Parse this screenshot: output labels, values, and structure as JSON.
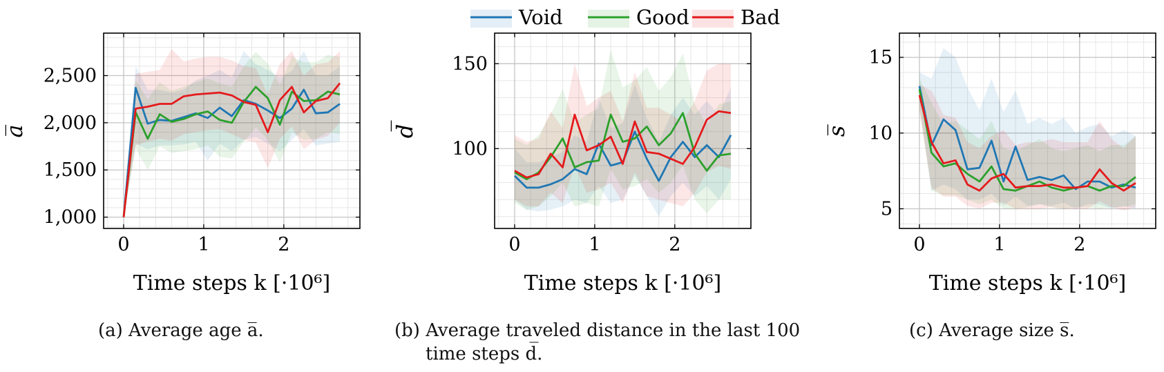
{
  "legend": {
    "entries": [
      {
        "name": "Void",
        "color": "#1f77b4"
      },
      {
        "name": "Good",
        "color": "#2ca02c"
      },
      {
        "name": "Bad",
        "color": "#e41a1c"
      }
    ]
  },
  "captions": {
    "a": "(a) Average age a̅.",
    "b_line1": "(b) Average traveled distance in the last 100",
    "b_line2": "time steps d̅.",
    "c": "(c) Average size s̅."
  },
  "chart_data": [
    {
      "type": "line",
      "ylabel": "a̅",
      "xlabel": "Time steps k [·10⁶]",
      "xlim": [
        -0.25,
        2.95
      ],
      "ylim": [
        880,
        2950
      ],
      "xticks": [
        0,
        1,
        2
      ],
      "xtick_labels": [
        "0",
        "1",
        "2"
      ],
      "yticks": [
        1000,
        1500,
        2000,
        2500
      ],
      "ytick_labels": [
        "1,000",
        "1,500",
        "2,000",
        "2,500"
      ],
      "grid": true,
      "x": [
        0,
        0.15,
        0.3,
        0.45,
        0.6,
        0.75,
        0.9,
        1.05,
        1.2,
        1.35,
        1.5,
        1.65,
        1.8,
        1.95,
        2.1,
        2.25,
        2.4,
        2.55,
        2.7
      ],
      "series": [
        {
          "name": "Void",
          "values": [
            1000,
            2370,
            1990,
            2030,
            2020,
            2060,
            2100,
            2050,
            2160,
            2070,
            2240,
            2200,
            2130,
            2050,
            2150,
            2350,
            2100,
            2110,
            2200
          ],
          "lower": [
            1000,
            1780,
            1720,
            1760,
            1760,
            1770,
            1800,
            1600,
            1780,
            1700,
            1820,
            1850,
            1780,
            1700,
            1820,
            1930,
            1760,
            1780,
            1800
          ],
          "upper": [
            1000,
            2600,
            2350,
            2350,
            2320,
            2350,
            2450,
            2500,
            2560,
            2480,
            2760,
            2620,
            2560,
            2480,
            2550,
            2760,
            2500,
            2500,
            2600
          ]
        },
        {
          "name": "Good",
          "values": [
            1000,
            2110,
            1830,
            2090,
            2010,
            2040,
            2090,
            2120,
            2030,
            2000,
            2220,
            2380,
            2260,
            1980,
            2330,
            2230,
            2240,
            2330,
            2300
          ],
          "lower": [
            1000,
            1730,
            1500,
            1750,
            1680,
            1700,
            1720,
            1760,
            1640,
            1620,
            1800,
            1950,
            1820,
            1580,
            1900,
            1820,
            1830,
            1900,
            1880
          ],
          "upper": [
            1000,
            2450,
            2250,
            2430,
            2340,
            2380,
            2430,
            2470,
            2420,
            2380,
            2600,
            2750,
            2630,
            2400,
            2700,
            2640,
            2640,
            2720,
            2690
          ]
        },
        {
          "name": "Bad",
          "values": [
            1000,
            2150,
            2170,
            2200,
            2200,
            2280,
            2300,
            2310,
            2320,
            2290,
            2220,
            2190,
            1900,
            2240,
            2380,
            2110,
            2230,
            2260,
            2420
          ],
          "lower": [
            1000,
            1760,
            1800,
            1830,
            1810,
            1880,
            1900,
            1920,
            1930,
            1880,
            1820,
            1790,
            1520,
            1830,
            1960,
            1720,
            1820,
            1860,
            2000
          ],
          "upper": [
            1000,
            2520,
            2540,
            2560,
            2780,
            2650,
            2680,
            2700,
            2700,
            2660,
            2600,
            2580,
            2300,
            2620,
            2760,
            2500,
            2620,
            2640,
            2760
          ]
        }
      ]
    },
    {
      "type": "line",
      "ylabel": "d̅",
      "xlabel": "Time steps k [·10⁶]",
      "xlim": [
        -0.25,
        2.95
      ],
      "ylim": [
        53,
        168
      ],
      "xticks": [
        0,
        1,
        2
      ],
      "xtick_labels": [
        "0",
        "1",
        "2"
      ],
      "yticks": [
        100,
        150
      ],
      "ytick_labels": [
        "100",
        "150"
      ],
      "grid": true,
      "x": [
        0,
        0.15,
        0.3,
        0.45,
        0.6,
        0.75,
        0.9,
        1.05,
        1.2,
        1.35,
        1.5,
        1.65,
        1.8,
        1.95,
        2.1,
        2.25,
        2.4,
        2.55,
        2.7
      ],
      "series": [
        {
          "name": "Void",
          "values": [
            84,
            77,
            77,
            79,
            82,
            88,
            85,
            103,
            90,
            92,
            110,
            94,
            81,
            95,
            104,
            95,
            102,
            95,
            108
          ],
          "lower": [
            70,
            64,
            63,
            64,
            66,
            70,
            68,
            78,
            68,
            70,
            84,
            72,
            60,
            72,
            80,
            72,
            78,
            70,
            82
          ],
          "upper": [
            100,
            92,
            92,
            95,
            98,
            108,
            104,
            130,
            112,
            115,
            138,
            118,
            104,
            120,
            130,
            120,
            128,
            120,
            136
          ]
        },
        {
          "name": "Good",
          "values": [
            86,
            82,
            86,
            95,
            106,
            89,
            92,
            93,
            120,
            104,
            106,
            113,
            102,
            109,
            121,
            97,
            87,
            96,
            97
          ],
          "lower": [
            68,
            64,
            66,
            72,
            80,
            66,
            68,
            66,
            88,
            76,
            78,
            82,
            74,
            80,
            90,
            70,
            62,
            70,
            70
          ],
          "upper": [
            106,
            102,
            108,
            120,
            135,
            115,
            120,
            124,
            158,
            136,
            140,
            148,
            134,
            142,
            156,
            126,
            114,
            126,
            128
          ]
        },
        {
          "name": "Bad",
          "values": [
            87,
            83,
            85,
            97,
            89,
            120,
            99,
            102,
            107,
            91,
            116,
            98,
            97,
            94,
            91,
            101,
            117,
            122,
            121
          ],
          "lower": [
            70,
            66,
            66,
            74,
            68,
            90,
            74,
            76,
            80,
            68,
            86,
            72,
            70,
            68,
            66,
            74,
            86,
            90,
            88
          ],
          "upper": [
            108,
            104,
            106,
            122,
            112,
            150,
            125,
            130,
            134,
            116,
            145,
            124,
            124,
            120,
            116,
            128,
            146,
            150,
            150
          ]
        }
      ]
    },
    {
      "type": "line",
      "ylabel": "s̅",
      "xlabel": "Time steps k [·10⁶]",
      "xlim": [
        -0.25,
        2.95
      ],
      "ylim": [
        3.7,
        16.6
      ],
      "xticks": [
        0,
        1,
        2
      ],
      "xtick_labels": [
        "0",
        "1",
        "2"
      ],
      "yticks": [
        5,
        10,
        15
      ],
      "ytick_labels": [
        "5",
        "10",
        "15"
      ],
      "grid": true,
      "x": [
        0,
        0.15,
        0.3,
        0.45,
        0.6,
        0.75,
        0.9,
        1.05,
        1.2,
        1.35,
        1.5,
        1.65,
        1.8,
        1.95,
        2.1,
        2.25,
        2.4,
        2.55,
        2.7
      ],
      "series": [
        {
          "name": "Void",
          "values": [
            13.1,
            9.2,
            10.9,
            10.2,
            7.6,
            7.7,
            9.5,
            6.8,
            9.1,
            6.9,
            7.1,
            6.9,
            7.2,
            6.3,
            6.8,
            6.8,
            6.4,
            6.6,
            6.4
          ],
          "lower": [
            12.0,
            6.2,
            6.6,
            6.3,
            5.6,
            5.6,
            6.0,
            5.2,
            5.8,
            5.2,
            5.3,
            5.2,
            5.4,
            5.0,
            5.3,
            5.3,
            5.0,
            5.2,
            5.0
          ],
          "upper": [
            14.0,
            13.6,
            15.6,
            15.0,
            13.0,
            11.5,
            13.6,
            11.4,
            12.8,
            10.6,
            11.0,
            10.6,
            11.0,
            10.0,
            10.4,
            10.6,
            9.8,
            10.2,
            9.8
          ]
        },
        {
          "name": "Good",
          "values": [
            12.9,
            8.7,
            7.8,
            8.0,
            7.3,
            6.8,
            7.8,
            6.3,
            6.2,
            6.5,
            6.8,
            6.4,
            6.2,
            6.4,
            6.5,
            6.2,
            6.5,
            6.5,
            7.1
          ],
          "lower": [
            11.6,
            6.2,
            5.9,
            5.9,
            5.6,
            5.3,
            5.6,
            5.0,
            5.0,
            5.1,
            5.3,
            5.1,
            5.0,
            5.1,
            5.1,
            5.0,
            5.1,
            5.1,
            5.3
          ],
          "upper": [
            13.6,
            12.0,
            10.6,
            10.8,
            10.2,
            9.6,
            10.8,
            9.0,
            8.8,
            9.2,
            9.6,
            9.0,
            8.8,
            9.0,
            9.2,
            8.8,
            9.2,
            9.2,
            9.8
          ]
        },
        {
          "name": "Bad",
          "values": [
            12.5,
            9.4,
            8.0,
            8.2,
            6.6,
            6.2,
            7.0,
            7.3,
            6.4,
            6.5,
            6.5,
            6.6,
            6.4,
            6.4,
            6.5,
            7.6,
            6.7,
            6.2,
            6.7
          ],
          "lower": [
            11.4,
            6.4,
            5.8,
            5.8,
            5.2,
            5.0,
            5.4,
            5.4,
            5.0,
            5.0,
            5.0,
            5.1,
            5.0,
            5.0,
            5.0,
            5.5,
            5.1,
            4.9,
            5.1
          ],
          "upper": [
            13.2,
            12.8,
            11.2,
            11.0,
            9.4,
            9.0,
            9.8,
            10.2,
            9.2,
            9.4,
            9.4,
            9.6,
            9.4,
            9.4,
            9.4,
            10.8,
            9.6,
            9.0,
            9.8
          ]
        }
      ]
    }
  ]
}
